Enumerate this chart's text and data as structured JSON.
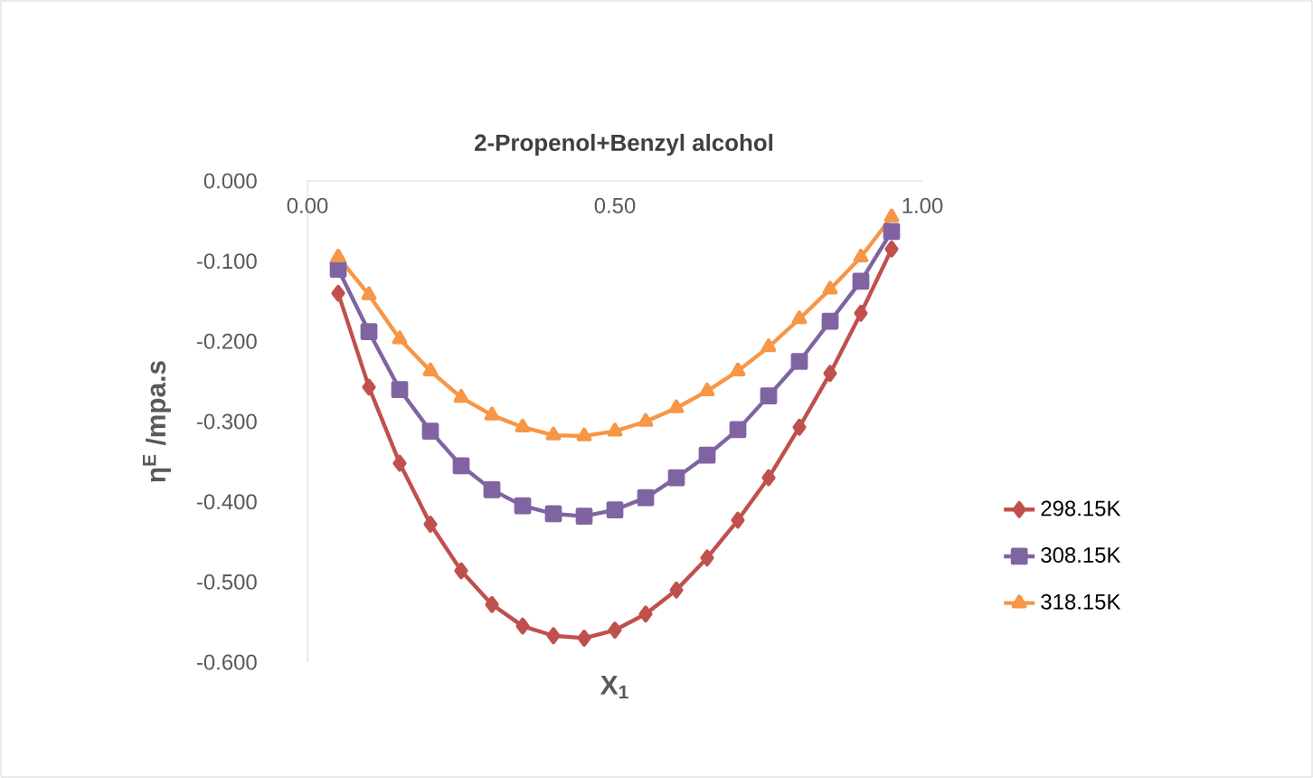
{
  "chart_data": {
    "type": "line",
    "title": "2-Propenol+Benzyl alcohol",
    "xlabel": "X$_{1}$",
    "ylabel": "η$^{E}$ /mpa.s",
    "x": [
      0.05,
      0.1,
      0.15,
      0.2,
      0.25,
      0.3,
      0.35,
      0.4,
      0.45,
      0.5,
      0.55,
      0.6,
      0.65,
      0.7,
      0.75,
      0.8,
      0.85,
      0.9,
      0.95
    ],
    "series": [
      {
        "name": "298.15K",
        "color": "#c0504d",
        "marker": "diamond",
        "values": [
          -0.14,
          -0.257,
          -0.352,
          -0.428,
          -0.486,
          -0.528,
          -0.555,
          -0.567,
          -0.57,
          -0.56,
          -0.54,
          -0.51,
          -0.47,
          -0.423,
          -0.37,
          -0.307,
          -0.24,
          -0.165,
          -0.085
        ]
      },
      {
        "name": "308.15K",
        "color": "#8064a2",
        "marker": "square",
        "values": [
          -0.11,
          -0.188,
          -0.26,
          -0.312,
          -0.355,
          -0.385,
          -0.405,
          -0.415,
          -0.418,
          -0.41,
          -0.395,
          -0.37,
          -0.342,
          -0.31,
          -0.268,
          -0.225,
          -0.175,
          -0.125,
          -0.063
        ]
      },
      {
        "name": "318.15K",
        "color": "#f79646",
        "marker": "triangle",
        "values": [
          -0.095,
          -0.142,
          -0.197,
          -0.237,
          -0.27,
          -0.292,
          -0.307,
          -0.317,
          -0.318,
          -0.312,
          -0.3,
          -0.283,
          -0.262,
          -0.237,
          -0.207,
          -0.172,
          -0.135,
          -0.095,
          -0.045
        ]
      }
    ],
    "xlim": [
      0,
      1
    ],
    "ylim": [
      -0.6,
      0
    ],
    "xticks": [
      {
        "value": 0,
        "label": "0.00"
      },
      {
        "value": 0.5,
        "label": "0.50"
      },
      {
        "value": 1,
        "label": "1.00"
      }
    ],
    "yticks": [
      {
        "value": 0,
        "label": "0.000"
      },
      {
        "value": -0.1,
        "label": "-0.100"
      },
      {
        "value": -0.2,
        "label": "-0.200"
      },
      {
        "value": -0.3,
        "label": "-0.300"
      },
      {
        "value": -0.4,
        "label": "-0.400"
      },
      {
        "value": -0.5,
        "label": "-0.500"
      },
      {
        "value": -0.6,
        "label": "-0.600"
      }
    ],
    "grid": false,
    "legend": "right",
    "line_style": "solid"
  }
}
